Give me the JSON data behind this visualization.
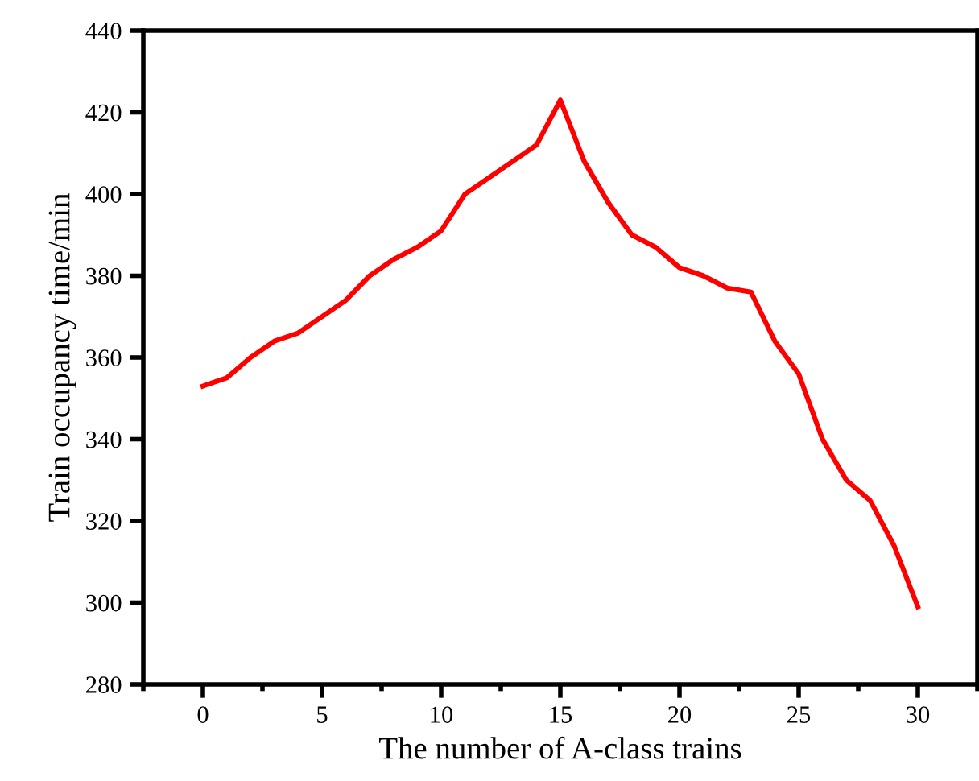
{
  "chart_data": {
    "type": "line",
    "xlabel": "The number of A-class trains",
    "ylabel": "Train occupancy time/min",
    "x": [
      0,
      1,
      2,
      3,
      4,
      5,
      6,
      7,
      8,
      9,
      10,
      11,
      12,
      13,
      14,
      15,
      16,
      17,
      18,
      19,
      20,
      21,
      22,
      23,
      24,
      25,
      26,
      27,
      28,
      29,
      30
    ],
    "series": [
      {
        "color": "#ff0000",
        "values": [
          353,
          355,
          360,
          364,
          366,
          370,
          374,
          380,
          384,
          387,
          391,
          400,
          404,
          408,
          412,
          423,
          408,
          398,
          390,
          387,
          382,
          380,
          377,
          376,
          364,
          356,
          340,
          330,
          325,
          314,
          299
        ]
      }
    ],
    "xlim": [
      -2.5,
      32.5
    ],
    "xticks": [
      0,
      5,
      10,
      15,
      20,
      25,
      30
    ],
    "ylim": [
      280,
      440
    ],
    "yticks": [
      280,
      300,
      320,
      340,
      360,
      380,
      400,
      420,
      440
    ],
    "grid": false,
    "legend": false,
    "marker": "none",
    "line_style": "solid"
  }
}
